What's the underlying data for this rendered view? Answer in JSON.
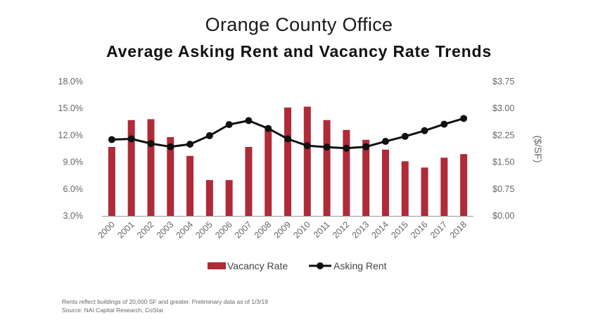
{
  "chart_data": {
    "type": "bar",
    "title": "Orange County Office",
    "subtitle": "Average Asking Rent and Vacancy Rate Trends",
    "categories": [
      "2000",
      "2001",
      "2002",
      "2003",
      "2004",
      "2005",
      "2006",
      "2007",
      "2008",
      "2009",
      "2010",
      "2011",
      "2012",
      "2013",
      "2014",
      "2015",
      "2016",
      "2017",
      "2018"
    ],
    "series": [
      {
        "name": "Vacancy Rate",
        "type": "bar",
        "axis": "left",
        "color": "#b02a37",
        "values": [
          10.7,
          13.7,
          13.8,
          11.8,
          9.7,
          7.0,
          7.0,
          10.7,
          12.6,
          15.1,
          15.2,
          13.7,
          12.6,
          11.5,
          10.4,
          9.1,
          8.4,
          9.5,
          9.9
        ]
      },
      {
        "name": "Asking Rent",
        "type": "line",
        "axis": "right",
        "color": "#111111",
        "values": [
          2.13,
          2.15,
          2.02,
          1.93,
          2.0,
          2.24,
          2.55,
          2.66,
          2.44,
          2.15,
          1.96,
          1.92,
          1.89,
          1.93,
          2.08,
          2.22,
          2.38,
          2.56,
          2.72
        ]
      }
    ],
    "ylabel_left": "",
    "ylabel_right": "($/SF)",
    "ylim_left": [
      3.0,
      18.0
    ],
    "ylim_right": [
      0.0,
      3.75
    ],
    "yticks_left": [
      "3.0%",
      "6.0%",
      "9.0%",
      "12.0%",
      "15.0%",
      "18.0%"
    ],
    "yticks_right": [
      "$0.00",
      "$0.75",
      "$1.50",
      "$2.25",
      "$3.00",
      "$3.75"
    ],
    "legend_position": "bottom",
    "grid": false
  },
  "footnotes": {
    "line1": "Rents reflect buildings of 20,000 SF and greater. Preliminary data as of 1/3/19",
    "line2": "Source: NAI Capital Research, CoStar"
  }
}
